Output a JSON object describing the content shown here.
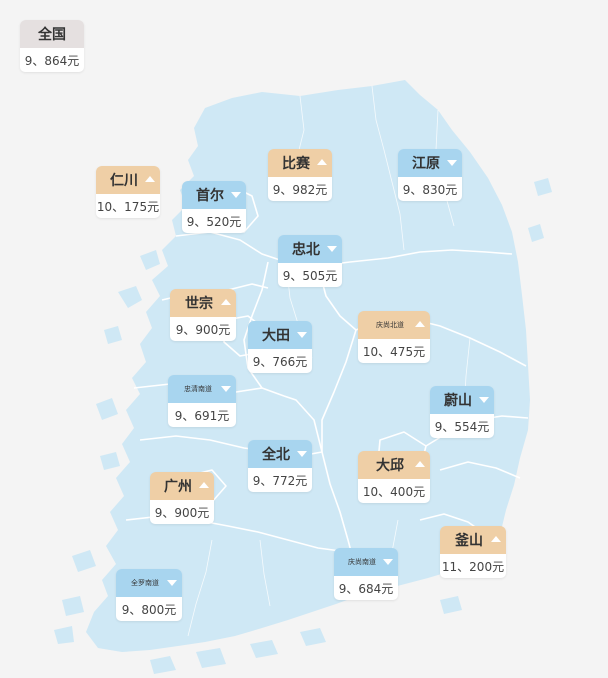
{
  "national": {
    "name": "全国",
    "price": "9、864元"
  },
  "colors": {
    "land": "#cfe8f5",
    "border": "#ffffff",
    "up": "#efcfa6",
    "down": "#a8d5ef",
    "national": "#e5e0e0"
  },
  "regions": [
    {
      "key": "incheon",
      "name": "仁川",
      "price": "10、175元",
      "trend": "up",
      "small": false
    },
    {
      "key": "seoul",
      "name": "首尔",
      "price": "9、520元",
      "trend": "down",
      "small": false
    },
    {
      "key": "gyeonggi",
      "name": "比赛",
      "price": "9、982元",
      "trend": "up",
      "small": false
    },
    {
      "key": "gangwon",
      "name": "江原",
      "price": "9、830元",
      "trend": "down",
      "small": false
    },
    {
      "key": "chungbuk",
      "name": "忠北",
      "price": "9、505元",
      "trend": "down",
      "small": false
    },
    {
      "key": "sejong",
      "name": "世宗",
      "price": "9、900元",
      "trend": "up",
      "small": false
    },
    {
      "key": "daejeon",
      "name": "大田",
      "price": "9、766元",
      "trend": "down",
      "small": false
    },
    {
      "key": "gyeongbuk",
      "name": "庆尚北道",
      "price": "10、475元",
      "trend": "up",
      "small": true
    },
    {
      "key": "chungnam",
      "name": "忠清南道",
      "price": "9、691元",
      "trend": "down",
      "small": true
    },
    {
      "key": "ulsan",
      "name": "蔚山",
      "price": "9、554元",
      "trend": "down",
      "small": false
    },
    {
      "key": "jeonbuk",
      "name": "全北",
      "price": "9、772元",
      "trend": "down",
      "small": false
    },
    {
      "key": "daegu",
      "name": "大邱",
      "price": "10、400元",
      "trend": "up",
      "small": false
    },
    {
      "key": "gwangju",
      "name": "广州",
      "price": "9、900元",
      "trend": "up",
      "small": false
    },
    {
      "key": "busan",
      "name": "釜山",
      "price": "11、200元",
      "trend": "up",
      "small": false
    },
    {
      "key": "gyeongnam",
      "name": "庆尚南道",
      "price": "9、684元",
      "trend": "down",
      "small": true
    },
    {
      "key": "jeonnam",
      "name": "全罗南道",
      "price": "9、800元",
      "trend": "down",
      "small": true
    }
  ]
}
